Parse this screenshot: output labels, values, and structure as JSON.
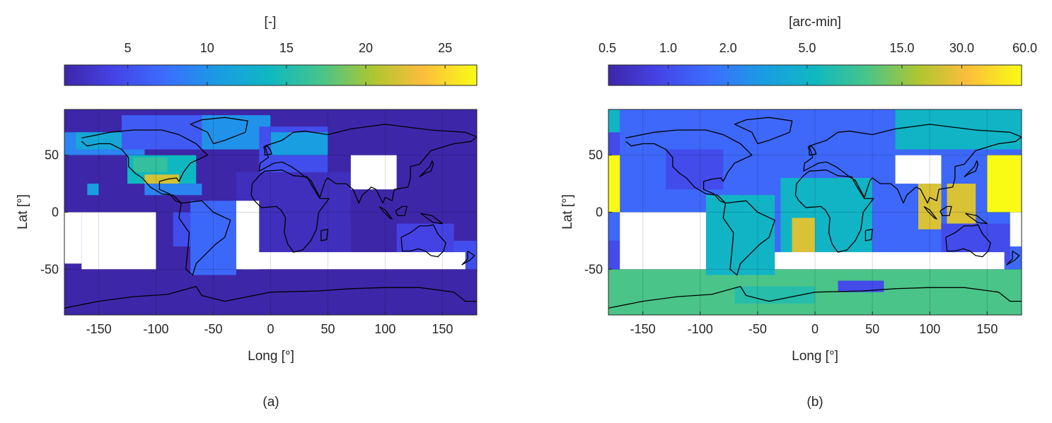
{
  "chart_data": [
    {
      "type": "heatmap",
      "panel_label": "(a)",
      "xlabel": "Long [°]",
      "ylabel": "Lat [°]",
      "xlim": [
        -180,
        180
      ],
      "ylim": [
        -90,
        90
      ],
      "xticks": [
        -150,
        -100,
        -50,
        0,
        50,
        100,
        150
      ],
      "yticks": [
        -50,
        0,
        50
      ],
      "grid": true,
      "colorbar": {
        "location": "top",
        "title": "[-]",
        "range": [
          1,
          27
        ],
        "ticks": [
          5,
          10,
          15,
          20,
          25
        ],
        "tick_labels": [
          "5",
          "10",
          "15",
          "20",
          "25"
        ],
        "scale": "linear"
      },
      "regions": [
        {
          "lon": [
            -180,
            180
          ],
          "lat": [
            -90,
            -50
          ],
          "value": 1
        },
        {
          "lon": [
            -180,
            -130
          ],
          "lat": [
            0,
            90
          ],
          "value": 1
        },
        {
          "lon": [
            -180,
            -110
          ],
          "lat": [
            50,
            70
          ],
          "value": 9
        },
        {
          "lon": [
            -170,
            -130
          ],
          "lat": [
            55,
            70
          ],
          "value": 12
        },
        {
          "lon": [
            -130,
            -60
          ],
          "lat": [
            55,
            85
          ],
          "value": 6
        },
        {
          "lon": [
            -125,
            -65
          ],
          "lat": [
            25,
            50
          ],
          "value": 14
        },
        {
          "lon": [
            -110,
            -80
          ],
          "lat": [
            25,
            33
          ],
          "value": 22
        },
        {
          "lon": [
            -120,
            -90
          ],
          "lat": [
            35,
            48
          ],
          "value": 16
        },
        {
          "lon": [
            -110,
            -60
          ],
          "lat": [
            15,
            25
          ],
          "value": 9
        },
        {
          "lon": [
            -60,
            0
          ],
          "lat": [
            55,
            85
          ],
          "value": 10
        },
        {
          "lon": [
            -70,
            -30
          ],
          "lat": [
            -55,
            10
          ],
          "value": 7
        },
        {
          "lon": [
            -85,
            -70
          ],
          "lat": [
            -30,
            0
          ],
          "value": 5
        },
        {
          "lon": [
            -30,
            70
          ],
          "lat": [
            -35,
            35
          ],
          "value": 2
        },
        {
          "lon": [
            -10,
            50
          ],
          "lat": [
            35,
            75
          ],
          "value": 5
        },
        {
          "lon": [
            0,
            50
          ],
          "lat": [
            50,
            70
          ],
          "value": 11
        },
        {
          "lon": [
            70,
            180
          ],
          "lat": [
            55,
            90
          ],
          "value": 1
        },
        {
          "lon": [
            70,
            120
          ],
          "lat": [
            -10,
            35
          ],
          "value": 1
        },
        {
          "lon": [
            110,
            160
          ],
          "lat": [
            -45,
            -10
          ],
          "value": 4
        },
        {
          "lon": [
            160,
            180
          ],
          "lat": [
            -50,
            -25
          ],
          "value": 5
        },
        {
          "lon": [
            -160,
            -150
          ],
          "lat": [
            15,
            25
          ],
          "value": 11
        }
      ],
      "nodata": [
        {
          "lon": [
            -165,
            -100
          ],
          "lat": [
            -50,
            0
          ]
        },
        {
          "lon": [
            -180,
            -165
          ],
          "lat": [
            -45,
            0
          ]
        },
        {
          "lon": [
            -25,
            170
          ],
          "lat": [
            -50,
            -35
          ]
        },
        {
          "lon": [
            70,
            110
          ],
          "lat": [
            20,
            50
          ]
        },
        {
          "lon": [
            -30,
            -10
          ],
          "lat": [
            -50,
            10
          ]
        }
      ]
    },
    {
      "type": "heatmap",
      "panel_label": "(b)",
      "xlabel": "Long [°]",
      "ylabel": "Lat [°]",
      "xlim": [
        -180,
        180
      ],
      "ylim": [
        -90,
        90
      ],
      "xticks": [
        -150,
        -100,
        -50,
        0,
        50,
        100,
        150
      ],
      "yticks": [
        -50,
        0,
        50
      ],
      "grid": true,
      "colorbar": {
        "location": "top",
        "title": "[arc-min]",
        "range": [
          0.5,
          60
        ],
        "ticks": [
          0.5,
          1,
          2,
          5,
          15,
          30,
          60
        ],
        "tick_labels": [
          "0.5",
          "1.0",
          "2.0",
          "5.0",
          "15.0",
          "30.0",
          "60.0"
        ],
        "scale": "log"
      },
      "regions": [
        {
          "lon": [
            -180,
            180
          ],
          "lat": [
            -90,
            -50
          ],
          "value": 10
        },
        {
          "lon": [
            -180,
            -170
          ],
          "lat": [
            0,
            50
          ],
          "value": 60
        },
        {
          "lon": [
            -180,
            -170
          ],
          "lat": [
            50,
            70
          ],
          "value": 1
        },
        {
          "lon": [
            -180,
            -170
          ],
          "lat": [
            70,
            90
          ],
          "value": 5
        },
        {
          "lon": [
            -170,
            70
          ],
          "lat": [
            55,
            90
          ],
          "value": 1.5
        },
        {
          "lon": [
            -130,
            -80
          ],
          "lat": [
            20,
            55
          ],
          "value": 1
        },
        {
          "lon": [
            -95,
            -35
          ],
          "lat": [
            -55,
            15
          ],
          "value": 5
        },
        {
          "lon": [
            -30,
            50
          ],
          "lat": [
            -35,
            30
          ],
          "value": 5
        },
        {
          "lon": [
            -20,
            0
          ],
          "lat": [
            -35,
            -5
          ],
          "value": 25
        },
        {
          "lon": [
            70,
            180
          ],
          "lat": [
            55,
            90
          ],
          "value": 5
        },
        {
          "lon": [
            90,
            110
          ],
          "lat": [
            -15,
            25
          ],
          "value": 25
        },
        {
          "lon": [
            115,
            140
          ],
          "lat": [
            -10,
            25
          ],
          "value": 25
        },
        {
          "lon": [
            150,
            180
          ],
          "lat": [
            0,
            50
          ],
          "value": 60
        },
        {
          "lon": [
            110,
            170
          ],
          "lat": [
            -45,
            -10
          ],
          "value": 1
        },
        {
          "lon": [
            -70,
            0
          ],
          "lat": [
            -80,
            -65
          ],
          "value": 7
        },
        {
          "lon": [
            20,
            60
          ],
          "lat": [
            -70,
            -60
          ],
          "value": 1
        },
        {
          "lon": [
            -180,
            -170
          ],
          "lat": [
            -50,
            -25
          ],
          "value": 1
        }
      ],
      "nodata": [
        {
          "lon": [
            -170,
            -95
          ],
          "lat": [
            -50,
            0
          ]
        },
        {
          "lon": [
            -35,
            165
          ],
          "lat": [
            -50,
            -35
          ]
        },
        {
          "lon": [
            70,
            110
          ],
          "lat": [
            25,
            50
          ]
        },
        {
          "lon": [
            170,
            180
          ],
          "lat": [
            -30,
            0
          ]
        }
      ]
    }
  ]
}
